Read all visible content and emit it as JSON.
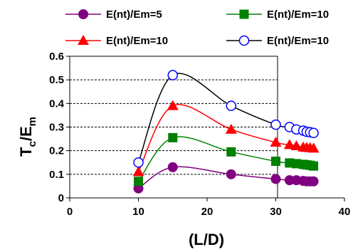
{
  "chart_data": {
    "type": "line",
    "title": "",
    "xlabel": "(L/D)",
    "ylabel_main": "T",
    "ylabel_sub_c": "c",
    "ylabel_slash": "/E",
    "ylabel_sub_m": "m",
    "xlim": [
      0,
      40
    ],
    "ylim": [
      0,
      0.6
    ],
    "xticks": [
      "0",
      "10",
      "20",
      "30",
      "40"
    ],
    "yticks": [
      "0",
      "0.1",
      "0.2",
      "0.3",
      "0.4",
      "0.5",
      "0.6"
    ],
    "xtick_values": [
      0,
      10,
      20,
      30,
      40
    ],
    "ytick_values": [
      0,
      0.1,
      0.2,
      0.3,
      0.4,
      0.5,
      0.6
    ],
    "grid": "horizontal dashed",
    "legend_position": "top",
    "series": [
      {
        "name": "E(nt)/Em=5",
        "color": "#800080",
        "marker": "circle-filled",
        "x": [
          10,
          15,
          23.5,
          30,
          32,
          33,
          34,
          34.5,
          35,
          35.5
        ],
        "y": [
          0.04,
          0.13,
          0.1,
          0.08,
          0.075,
          0.075,
          0.072,
          0.07,
          0.07,
          0.07
        ]
      },
      {
        "name": "E(nt)/Em=10",
        "color": "#008000",
        "marker": "square-filled",
        "x": [
          10,
          15,
          23.5,
          30,
          32,
          33,
          34,
          34.5,
          35,
          35.5
        ],
        "y": [
          0.07,
          0.255,
          0.195,
          0.155,
          0.148,
          0.145,
          0.142,
          0.14,
          0.138,
          0.135
        ]
      },
      {
        "name": "E(nt)/Em=10",
        "color": "#ff0000",
        "marker": "triangle-filled",
        "x": [
          10,
          15,
          23.5,
          30,
          32,
          33,
          34,
          34.5,
          35,
          35.5
        ],
        "y": [
          0.11,
          0.39,
          0.29,
          0.235,
          0.225,
          0.22,
          0.215,
          0.213,
          0.212,
          0.21
        ]
      },
      {
        "name": "E(nt)/Em=10",
        "color": "#000000",
        "marker": "circle-open",
        "marker_stroke": "#0000ff",
        "x": [
          10,
          15,
          23.5,
          30,
          32,
          33,
          34,
          34.5,
          35,
          35.5
        ],
        "y": [
          0.15,
          0.52,
          0.39,
          0.31,
          0.3,
          0.29,
          0.285,
          0.28,
          0.278,
          0.275
        ]
      }
    ]
  }
}
